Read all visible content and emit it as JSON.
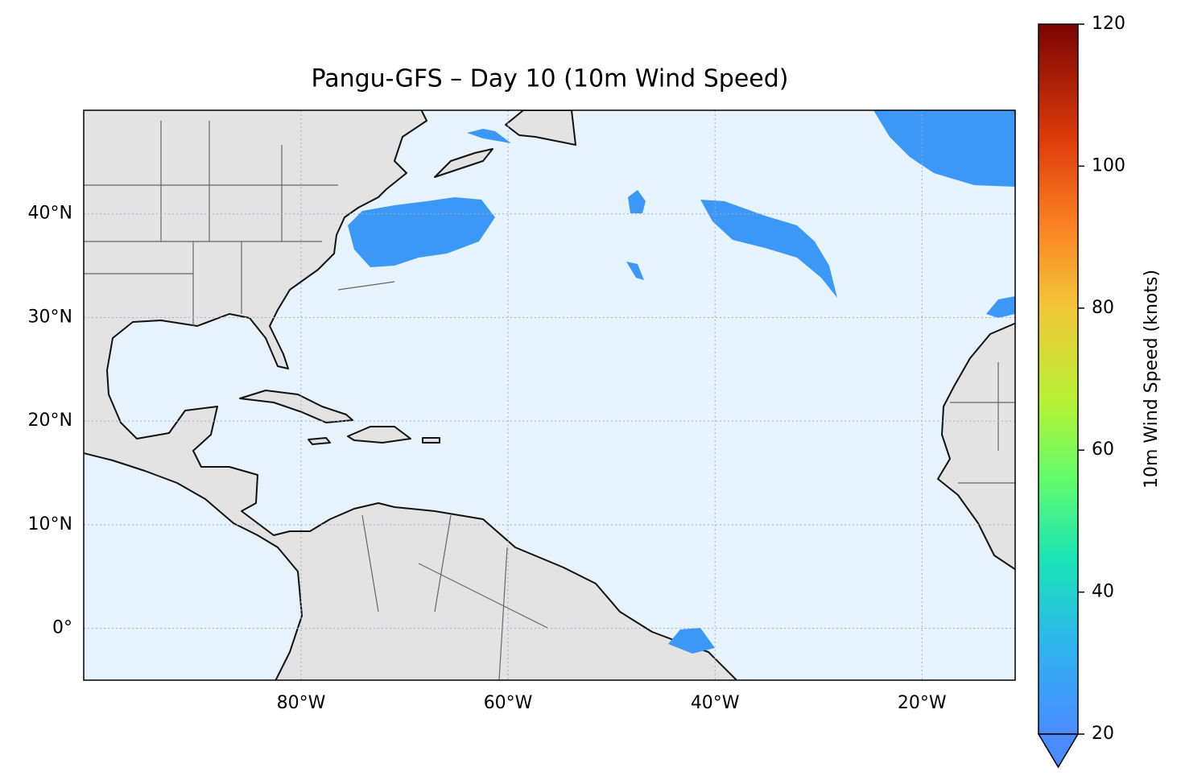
{
  "map": {
    "title": "Pangu-GFS – Day 10 (10m Wind Speed)",
    "xlim": [
      -101,
      -11
    ],
    "ylim": [
      -5,
      50
    ],
    "xticks": [
      {
        "value": -80,
        "label": "80°W"
      },
      {
        "value": -60,
        "label": "60°W"
      },
      {
        "value": -40,
        "label": "40°W"
      },
      {
        "value": -20,
        "label": "20°W"
      }
    ],
    "yticks": [
      {
        "value": 0,
        "label": "0°"
      },
      {
        "value": 10,
        "label": "10°N"
      },
      {
        "value": 20,
        "label": "20°N"
      },
      {
        "value": 30,
        "label": "30°N"
      },
      {
        "value": 40,
        "label": "40°N"
      }
    ],
    "grid": true,
    "colorbar": {
      "label": "10m Wind Speed (knots)",
      "lim": [
        20,
        120
      ],
      "ticks": [
        20,
        40,
        60,
        80,
        100,
        120
      ]
    }
  }
}
